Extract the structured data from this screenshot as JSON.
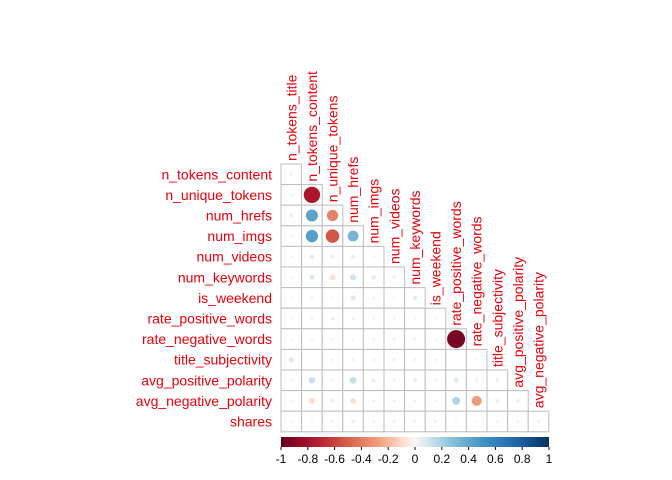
{
  "chart_data": {
    "type": "heatmap",
    "variables": [
      "n_tokens_title",
      "n_tokens_content",
      "n_unique_tokens",
      "num_hrefs",
      "num_imgs",
      "num_videos",
      "num_keywords",
      "is_weekend",
      "rate_positive_words",
      "rate_negative_words",
      "title_subjectivity",
      "avg_positive_polarity",
      "avg_negative_polarity",
      "shares"
    ],
    "row_labels": [
      "n_tokens_content",
      "n_unique_tokens",
      "num_hrefs",
      "num_imgs",
      "num_videos",
      "num_keywords",
      "is_weekend",
      "rate_positive_words",
      "rate_negative_words",
      "title_subjectivity",
      "avg_positive_polarity",
      "avg_negative_polarity",
      "shares"
    ],
    "column_labels": [
      "n_tokens_title",
      "n_tokens_content",
      "n_unique_tokens",
      "num_hrefs",
      "num_imgs",
      "num_videos",
      "num_keywords",
      "is_weekend",
      "rate_positive_words",
      "rate_negative_words",
      "title_subjectivity",
      "avg_positive_polarity",
      "avg_negative_polarity"
    ],
    "correlations": [
      [
        0.02
      ],
      [
        -0.01,
        -0.77
      ],
      [
        -0.05,
        0.42,
        -0.37
      ],
      [
        -0.01,
        0.44,
        -0.53,
        0.34
      ],
      [
        0.02,
        0.06,
        0.04,
        0.05,
        -0.01
      ],
      [
        -0.01,
        0.07,
        -0.09,
        0.11,
        0.06,
        -0.02
      ],
      [
        0.0,
        0.03,
        0.0,
        0.07,
        0.02,
        0.0,
        0.06
      ],
      [
        0.0,
        0.03,
        0.04,
        0.03,
        0.01,
        0.01,
        0.01,
        0.0
      ],
      [
        0.0,
        0.01,
        0.01,
        0.0,
        0.01,
        0.02,
        0.02,
        0.0,
        -0.94
      ],
      [
        0.08,
        0.0,
        0.01,
        0.03,
        0.02,
        0.03,
        0.02,
        0.01,
        0.0,
        0.0
      ],
      [
        -0.01,
        0.12,
        0.01,
        0.13,
        0.05,
        0.02,
        0.05,
        0.02,
        0.07,
        0.02,
        0.04
      ],
      [
        -0.01,
        -0.1,
        0.04,
        -0.09,
        -0.02,
        -0.03,
        -0.03,
        -0.02,
        0.18,
        -0.29,
        -0.04,
        -0.04
      ],
      [
        0.01,
        0.0,
        0.02,
        0.04,
        0.02,
        0.02,
        0.02,
        0.02,
        0.0,
        0.0,
        0.01,
        0.01,
        -0.03
      ]
    ],
    "colorbar": {
      "range": [
        -1,
        1
      ],
      "ticks": [
        "-1",
        "-0.8",
        "-0.6",
        "-0.4",
        "-0.2",
        "0",
        "0.2",
        "0.4",
        "0.6",
        "0.8",
        "1"
      ]
    },
    "colors": {
      "negative_end": "#67001f",
      "mid": "#f7f7f7",
      "positive_end": "#053061",
      "label": "#e8000b",
      "grid": "#bdbdbd"
    }
  }
}
